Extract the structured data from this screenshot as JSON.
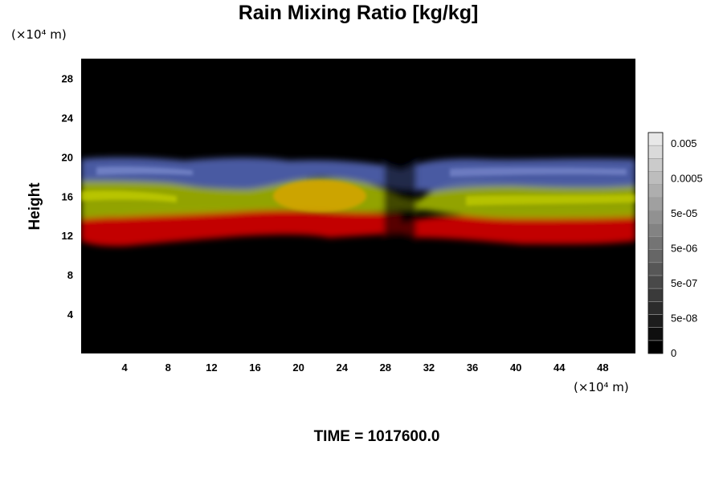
{
  "chart_data": {
    "type": "heatmap",
    "title": "Rain Mixing Ratio [kg/kg]",
    "ylabel": "Height",
    "x_unit_label": "(×10⁴ m)",
    "y_unit_label": "(×10⁴ m)",
    "x_ticks": [
      "4",
      "8",
      "12",
      "16",
      "20",
      "24",
      "28",
      "32",
      "36",
      "40",
      "44",
      "48"
    ],
    "y_ticks": [
      "4",
      "8",
      "12",
      "16",
      "20",
      "24",
      "28"
    ],
    "xlim": [
      0,
      51
    ],
    "ylim": [
      0,
      30
    ],
    "grid": false,
    "colorbar": {
      "labels": [
        "0.005",
        "0.0005",
        "5e-05",
        "5e-06",
        "5e-07",
        "5e-08",
        "0"
      ],
      "levels": 17,
      "placement": "right"
    },
    "bands": [
      {
        "color": "#d00000",
        "y_from": 11,
        "y_to": 14
      },
      {
        "color": "#b4c600",
        "y_from": 13.5,
        "y_to": 17
      },
      {
        "color": "#6c7cc8",
        "y_from": 17,
        "y_to": 19.5
      }
    ],
    "footer": "TIME = 1017600.0"
  }
}
